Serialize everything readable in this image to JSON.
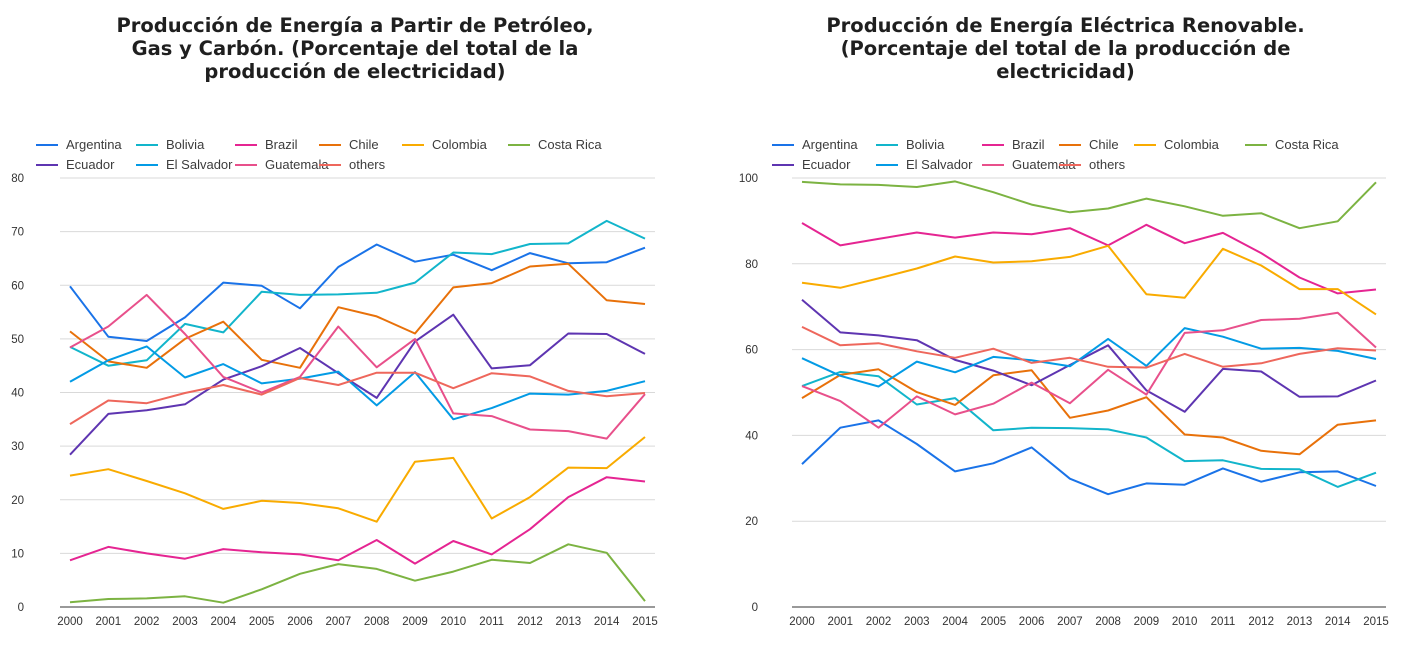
{
  "colors": {
    "Argentina": "#1a73e8",
    "Bolivia": "#12b5cb",
    "Brazil": "#e52592",
    "Chile": "#e8710a",
    "Colombia": "#f9ab00",
    "Costa Rica": "#7cb342",
    "Ecuador": "#5e35b1",
    "El Salvador": "#039be5",
    "Guatemala": "#e8508b",
    "others": "#ee675c"
  },
  "legend_order": [
    "Argentina",
    "Bolivia",
    "Brazil",
    "Chile",
    "Colombia",
    "Costa Rica",
    "Ecuador",
    "El Salvador",
    "Guatemala",
    "others"
  ],
  "chart_data": [
    {
      "type": "line",
      "title": "Producción de Energía a Partir de Petróleo,\nGas y Carbón. (Porcentaje del total de la\nproducción de electricidad)",
      "xlabel": "",
      "ylabel": "",
      "ylim": [
        0,
        80
      ],
      "yticks": [
        0,
        10,
        20,
        30,
        40,
        50,
        60,
        70,
        80
      ],
      "grid": true,
      "legend_position": "top",
      "x": [
        "2000",
        "2001",
        "2002",
        "2003",
        "2004",
        "2005",
        "2006",
        "2007",
        "2008",
        "2009",
        "2010",
        "2011",
        "2012",
        "2013",
        "2014",
        "2015"
      ],
      "series": [
        {
          "name": "Argentina",
          "values": [
            59.8,
            50.4,
            49.6,
            54.0,
            60.5,
            59.9,
            55.7,
            63.4,
            67.6,
            64.4,
            65.7,
            62.8,
            66.0,
            64.1,
            64.3,
            67.0
          ]
        },
        {
          "name": "Bolivia",
          "values": [
            48.5,
            45.0,
            46.0,
            52.8,
            51.2,
            58.8,
            58.2,
            58.3,
            58.6,
            60.5,
            66.1,
            65.8,
            67.7,
            67.8,
            72.0,
            68.7
          ]
        },
        {
          "name": "Brazil",
          "values": [
            8.7,
            11.2,
            10.0,
            9.0,
            10.8,
            10.2,
            9.8,
            8.7,
            12.5,
            8.1,
            12.3,
            9.8,
            14.5,
            20.5,
            24.2,
            23.4
          ]
        },
        {
          "name": "Chile",
          "values": [
            51.4,
            45.8,
            44.6,
            50.0,
            53.2,
            46.1,
            44.6,
            55.9,
            54.2,
            51.0,
            59.6,
            60.4,
            63.5,
            64.0,
            57.2,
            56.5
          ]
        },
        {
          "name": "Colombia",
          "values": [
            24.5,
            25.7,
            23.5,
            21.2,
            18.3,
            19.8,
            19.4,
            18.4,
            15.9,
            27.1,
            27.8,
            16.5,
            20.5,
            26.0,
            25.9,
            31.7
          ]
        },
        {
          "name": "Costa Rica",
          "values": [
            0.9,
            1.5,
            1.6,
            2.0,
            0.8,
            3.3,
            6.2,
            8.0,
            7.1,
            4.9,
            6.6,
            8.8,
            8.2,
            11.7,
            10.1,
            1.1
          ]
        },
        {
          "name": "Ecuador",
          "values": [
            28.4,
            36.0,
            36.7,
            37.8,
            42.4,
            44.9,
            48.3,
            43.6,
            39.0,
            49.5,
            54.5,
            44.5,
            45.1,
            51.0,
            50.9,
            47.2
          ]
        },
        {
          "name": "El Salvador",
          "values": [
            42.0,
            46.0,
            48.6,
            42.8,
            45.3,
            41.7,
            42.6,
            43.9,
            37.6,
            43.8,
            35.0,
            37.1,
            39.8,
            39.6,
            40.3,
            42.1
          ]
        },
        {
          "name": "Guatemala",
          "values": [
            48.4,
            52.3,
            58.2,
            50.9,
            42.9,
            40.0,
            42.9,
            52.3,
            44.7,
            50.0,
            36.1,
            35.6,
            33.1,
            32.8,
            31.4,
            39.7
          ]
        },
        {
          "name": "others",
          "values": [
            34.1,
            38.5,
            38.0,
            39.9,
            41.4,
            39.6,
            42.7,
            41.4,
            43.7,
            43.7,
            40.8,
            43.6,
            43.0,
            40.3,
            39.3,
            39.9
          ]
        }
      ]
    },
    {
      "type": "line",
      "title": "Producción de Energía Eléctrica Renovable.\n(Porcentaje del total de la producción de\nelectricidad)",
      "xlabel": "",
      "ylabel": "",
      "ylim": [
        0,
        100
      ],
      "yticks": [
        0,
        20,
        40,
        60,
        80,
        100
      ],
      "grid": true,
      "legend_position": "top",
      "x": [
        "2000",
        "2001",
        "2002",
        "2003",
        "2004",
        "2005",
        "2006",
        "2007",
        "2008",
        "2009",
        "2010",
        "2011",
        "2012",
        "2013",
        "2014",
        "2015"
      ],
      "series": [
        {
          "name": "Argentina",
          "values": [
            33.3,
            41.8,
            43.5,
            38.0,
            31.6,
            33.5,
            37.2,
            29.9,
            26.3,
            28.8,
            28.5,
            32.3,
            29.2,
            31.4,
            31.6,
            28.2
          ]
        },
        {
          "name": "Bolivia",
          "values": [
            51.5,
            54.8,
            53.8,
            47.2,
            48.7,
            41.2,
            41.8,
            41.7,
            41.4,
            39.5,
            34.0,
            34.2,
            32.2,
            32.1,
            28.0,
            31.3
          ]
        },
        {
          "name": "Brazil",
          "values": [
            89.5,
            84.3,
            85.8,
            87.3,
            86.1,
            87.3,
            86.9,
            88.3,
            84.3,
            89.1,
            84.8,
            87.2,
            82.5,
            76.8,
            73.1,
            74.0
          ]
        },
        {
          "name": "Chile",
          "values": [
            48.7,
            54.1,
            55.4,
            50.1,
            47.1,
            54.0,
            55.2,
            44.1,
            45.8,
            48.9,
            40.2,
            39.5,
            36.4,
            35.6,
            42.5,
            43.5
          ]
        },
        {
          "name": "Colombia",
          "values": [
            75.6,
            74.4,
            76.6,
            78.9,
            81.7,
            80.3,
            80.6,
            81.6,
            84.2,
            72.9,
            72.1,
            83.5,
            79.6,
            74.1,
            74.1,
            68.2
          ]
        },
        {
          "name": "Costa Rica",
          "values": [
            99.1,
            98.5,
            98.4,
            97.9,
            99.2,
            96.7,
            93.8,
            92.0,
            92.9,
            95.2,
            93.4,
            91.2,
            91.8,
            88.3,
            89.9,
            99.0
          ]
        },
        {
          "name": "Ecuador",
          "values": [
            71.6,
            64.0,
            63.3,
            62.2,
            57.6,
            55.1,
            51.7,
            56.4,
            61.0,
            50.5,
            45.5,
            55.5,
            54.9,
            49.0,
            49.1,
            52.8
          ]
        },
        {
          "name": "El Salvador",
          "values": [
            58.0,
            53.9,
            51.4,
            57.2,
            54.7,
            58.3,
            57.5,
            56.1,
            62.5,
            56.2,
            65.0,
            63.0,
            60.2,
            60.4,
            59.7,
            57.8
          ]
        },
        {
          "name": "Guatemala",
          "values": [
            51.5,
            48.0,
            41.8,
            49.1,
            44.9,
            47.4,
            52.3,
            47.5,
            55.3,
            49.5,
            63.9,
            64.5,
            66.9,
            67.2,
            68.6,
            60.5
          ]
        },
        {
          "name": "others",
          "values": [
            65.3,
            61.0,
            61.5,
            59.6,
            58.1,
            60.2,
            56.9,
            58.1,
            56.0,
            55.8,
            59.0,
            56.0,
            56.8,
            59.0,
            60.3,
            59.8
          ]
        }
      ]
    }
  ]
}
